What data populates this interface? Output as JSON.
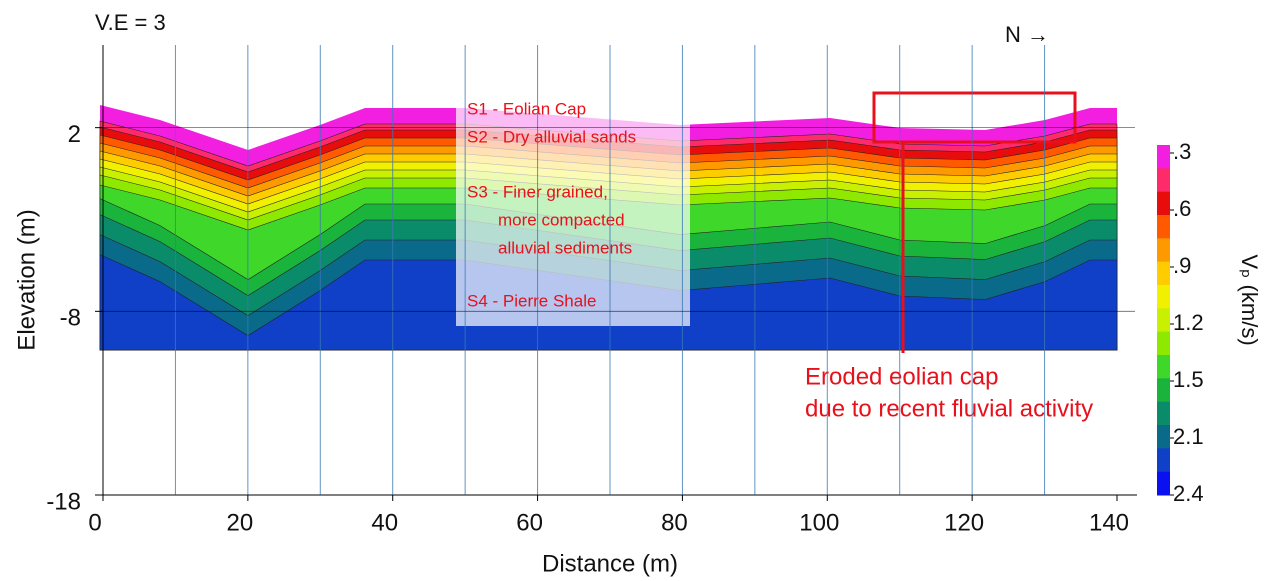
{
  "chart_data": {
    "type": "contour",
    "top_note": "V.E = 3",
    "north": "N →",
    "xlabel": "Distance (m)",
    "ylabel": "Elevation (m)",
    "xlim": [
      0,
      140
    ],
    "xticks": [
      0,
      20,
      40,
      60,
      80,
      100,
      120,
      140
    ],
    "ylim": [
      -18,
      6.5
    ],
    "yticks": [
      -18,
      -8,
      2
    ],
    "colorbar_label": "Vₚ (km/s)",
    "colorbar_ticks": [
      {
        "value": 0.3,
        "label": ".3"
      },
      {
        "value": 0.6,
        "label": ".6"
      },
      {
        "value": 0.9,
        "label": ".9"
      },
      1.2,
      1.5,
      2.1,
      2.4
    ],
    "layer_notes": [
      "S1 - Eolian Cap",
      "S2 - Dry alluvial sands",
      "S3 - Finer grained,",
      "more compacted",
      "alluvial sediments",
      "S4 - Pierre Shale"
    ],
    "callout": [
      "Eroded eolian cap",
      "due to recent fluvial activity"
    ]
  }
}
